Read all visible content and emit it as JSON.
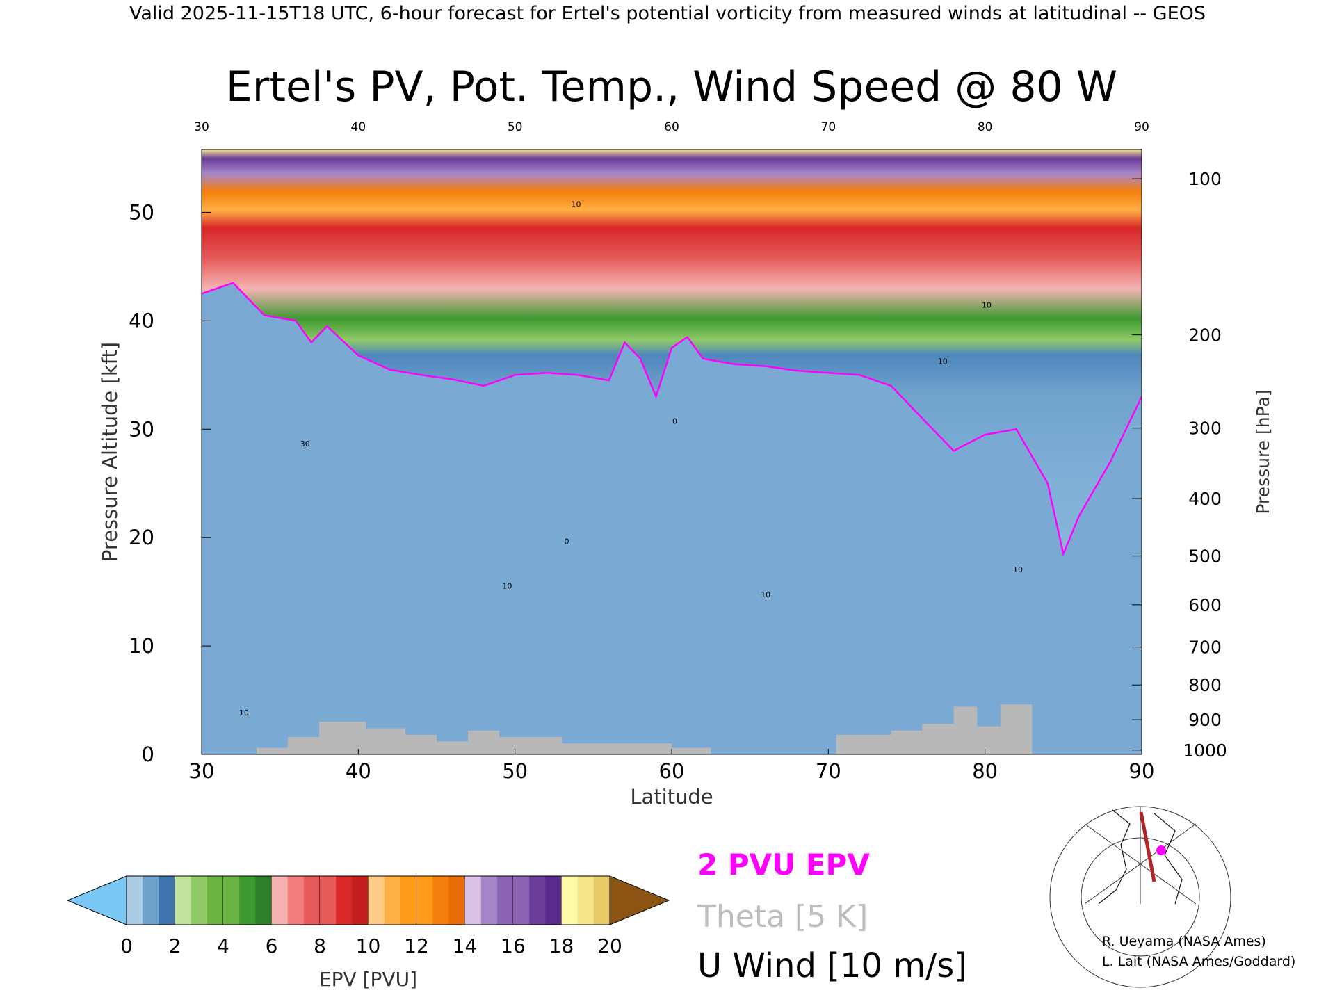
{
  "header": "Valid 2025-11-15T18 UTC, 6-hour forecast for Ertel's potential vorticity from measured winds at latitudinal -- GEOS",
  "chart_data": {
    "type": "heatmap",
    "title": "Ertel's PV, Pot. Temp., Wind Speed @ 80 W",
    "xlabel": "Latitude",
    "ylabel_left": "Pressure Altitude [kft]",
    "ylabel_right": "Pressure [hPa]",
    "xlim": [
      30,
      90
    ],
    "ylim_kft": [
      0,
      55.8
    ],
    "x_ticks": [
      30,
      40,
      50,
      60,
      70,
      80,
      90
    ],
    "y_ticks_kft": [
      0,
      10,
      20,
      30,
      40,
      50
    ],
    "pressure_ticks": [
      {
        "hPa": 100,
        "kft": 53.1
      },
      {
        "hPa": 200,
        "kft": 38.7
      },
      {
        "hPa": 300,
        "kft": 30.1
      },
      {
        "hPa": 400,
        "kft": 23.6
      },
      {
        "hPa": 500,
        "kft": 18.3
      },
      {
        "hPa": 600,
        "kft": 13.8
      },
      {
        "hPa": 700,
        "kft": 9.9
      },
      {
        "hPa": 800,
        "kft": 6.4
      },
      {
        "hPa": 900,
        "kft": 3.2
      },
      {
        "hPa": 1000,
        "kft": 0.4
      }
    ],
    "tropopause_2pvu_kft": [
      [
        30,
        42.5
      ],
      [
        32,
        43.5
      ],
      [
        34,
        40.5
      ],
      [
        36,
        40.0
      ],
      [
        37,
        38.0
      ],
      [
        38,
        39.5
      ],
      [
        40,
        36.8
      ],
      [
        42,
        35.5
      ],
      [
        44,
        35.0
      ],
      [
        46,
        34.6
      ],
      [
        48,
        34.0
      ],
      [
        50,
        35.0
      ],
      [
        52,
        35.2
      ],
      [
        54,
        35.0
      ],
      [
        56,
        34.5
      ],
      [
        57,
        38.0
      ],
      [
        58,
        36.5
      ],
      [
        59,
        33.0
      ],
      [
        60,
        37.5
      ],
      [
        61,
        38.5
      ],
      [
        62,
        36.5
      ],
      [
        64,
        36.0
      ],
      [
        66,
        35.8
      ],
      [
        68,
        35.4
      ],
      [
        70,
        35.2
      ],
      [
        72,
        35.0
      ],
      [
        74,
        34.0
      ],
      [
        76,
        31.0
      ],
      [
        78,
        28.0
      ],
      [
        80,
        29.5
      ],
      [
        82,
        30.0
      ],
      [
        84,
        25.0
      ],
      [
        85,
        18.5
      ],
      [
        86,
        22.0
      ],
      [
        88,
        27.0
      ],
      [
        90,
        33.0
      ]
    ],
    "terrain_kft": [
      [
        30,
        0
      ],
      [
        33.5,
        0
      ],
      [
        33.5,
        0.6
      ],
      [
        35.5,
        0.6
      ],
      [
        35.5,
        1.6
      ],
      [
        37.5,
        1.6
      ],
      [
        37.5,
        3.0
      ],
      [
        40.5,
        3.0
      ],
      [
        40.5,
        2.4
      ],
      [
        43,
        2.4
      ],
      [
        43,
        1.8
      ],
      [
        45,
        1.8
      ],
      [
        45,
        1.2
      ],
      [
        47,
        1.2
      ],
      [
        47,
        2.2
      ],
      [
        49,
        2.2
      ],
      [
        49,
        1.6
      ],
      [
        53,
        1.6
      ],
      [
        53,
        1.0
      ],
      [
        60,
        1.0
      ],
      [
        60,
        0.6
      ],
      [
        62.5,
        0.6
      ],
      [
        62.5,
        0
      ],
      [
        70.5,
        0
      ],
      [
        70.5,
        1.8
      ],
      [
        74,
        1.8
      ],
      [
        74,
        2.2
      ],
      [
        76,
        2.2
      ],
      [
        76,
        2.8
      ],
      [
        78,
        2.8
      ],
      [
        78,
        4.4
      ],
      [
        79.5,
        4.4
      ],
      [
        79.5,
        2.6
      ],
      [
        81,
        2.6
      ],
      [
        81,
        4.6
      ],
      [
        83,
        4.6
      ],
      [
        83,
        0
      ],
      [
        90,
        0
      ]
    ],
    "colorbar": {
      "label": "EPV [PVU]",
      "ticks": [
        0,
        2,
        4,
        6,
        8,
        10,
        12,
        14,
        16,
        18,
        20
      ],
      "under_color": "#7cc8f5",
      "over_color": "#8b5413",
      "bins": [
        {
          "from": 0,
          "to": 2,
          "colors": [
            "#a9cbe3",
            "#6fa2cc",
            "#3e74ad"
          ]
        },
        {
          "from": 2,
          "to": 4,
          "colors": [
            "#bfe39a",
            "#8fca66",
            "#6bb444"
          ]
        },
        {
          "from": 4,
          "to": 6,
          "colors": [
            "#6bb444",
            "#3d9a31",
            "#2f7e2a"
          ]
        },
        {
          "from": 6,
          "to": 8,
          "colors": [
            "#f5b3b3",
            "#f07c7c",
            "#e65a5a"
          ]
        },
        {
          "from": 8,
          "to": 10,
          "colors": [
            "#e65a5a",
            "#d92828",
            "#c41f1f"
          ]
        },
        {
          "from": 10,
          "to": 12,
          "colors": [
            "#ffcc88",
            "#ffb045",
            "#ff9a1a"
          ]
        },
        {
          "from": 12,
          "to": 14,
          "colors": [
            "#ff9a1a",
            "#f57f0c",
            "#e86d08"
          ]
        },
        {
          "from": 14,
          "to": 16,
          "colors": [
            "#d8c3e6",
            "#a887c8",
            "#8a63b3"
          ]
        },
        {
          "from": 16,
          "to": 18,
          "colors": [
            "#8a63b3",
            "#6a3d99",
            "#5a2b8c"
          ]
        },
        {
          "from": 18,
          "to": 20,
          "colors": [
            "#fffaa8",
            "#f5e68a",
            "#e8cc6a"
          ]
        }
      ]
    },
    "legend": [
      {
        "label": "2 PVU EPV",
        "color": "#ff00ff"
      },
      {
        "label": "Theta [5 K]",
        "color": "#bdbdbd"
      },
      {
        "label": "U Wind [10 m/s]",
        "color": "#000000"
      }
    ],
    "annotations": [
      {
        "text": "0",
        "x": 60.2,
        "kft": 30.5
      },
      {
        "text": "0",
        "x": 53.3,
        "kft": 19.4
      },
      {
        "text": "10",
        "x": 49.5,
        "kft": 15.3
      },
      {
        "text": "10",
        "x": 53.9,
        "kft": 50.5
      },
      {
        "text": "10",
        "x": 80.1,
        "kft": 41.2
      },
      {
        "text": "10",
        "x": 77.3,
        "kft": 36.0
      },
      {
        "text": "10",
        "x": 66.0,
        "kft": 14.5
      },
      {
        "text": "10",
        "x": 82.1,
        "kft": 16.8
      },
      {
        "text": "10",
        "x": 32.7,
        "kft": 3.6
      },
      {
        "text": "30",
        "x": 36.6,
        "kft": 28.4
      }
    ],
    "credits": [
      "R. Ueyama (NASA Ames)",
      "L. Lait (NASA Ames/Goddard)"
    ]
  },
  "inset_map": {
    "section_color": "#b22222",
    "marker_color": "#ff00ff"
  }
}
